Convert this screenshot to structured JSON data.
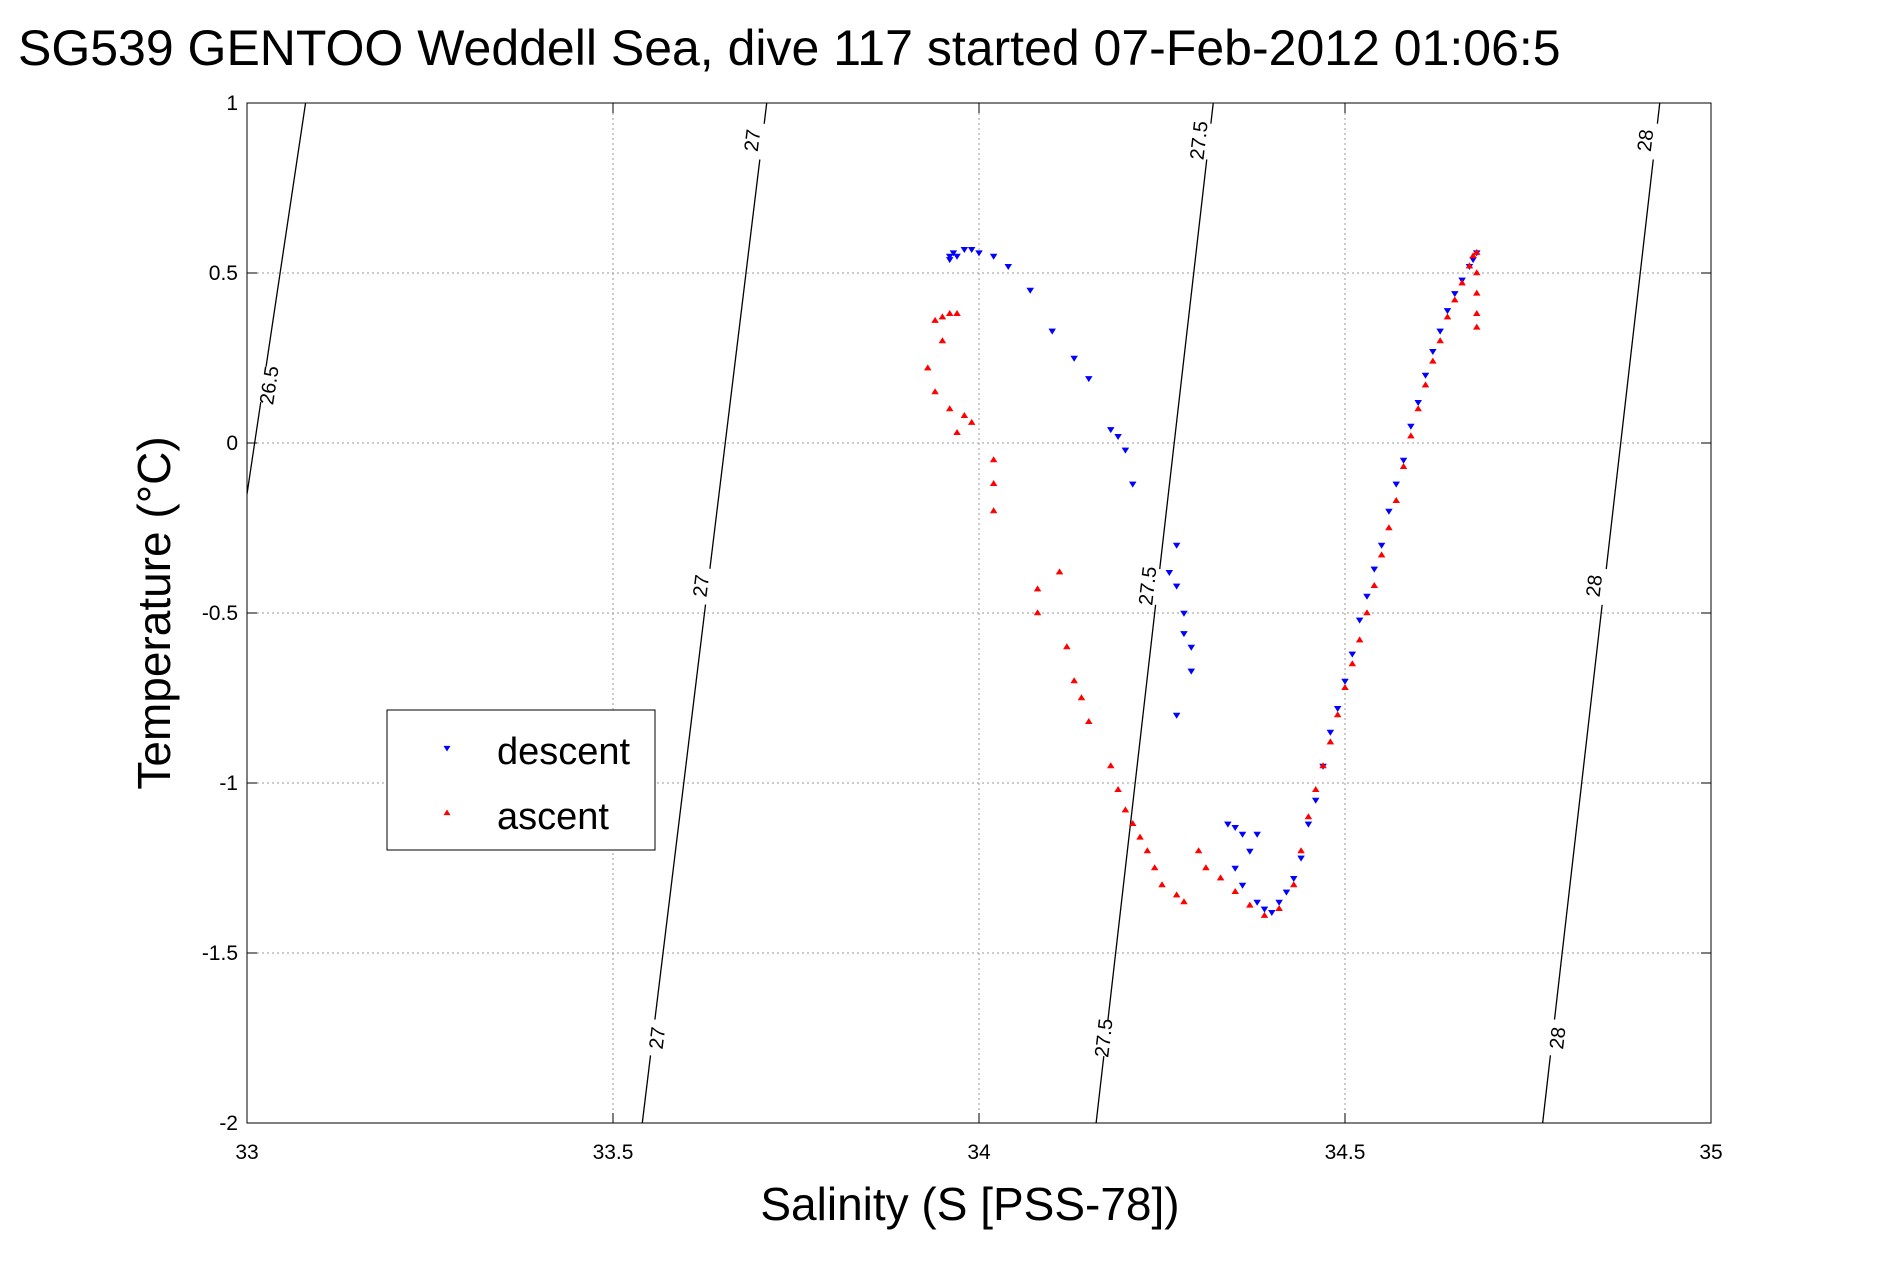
{
  "chart_data": {
    "type": "scatter",
    "title": "SG539 GENTOO Weddell Sea, dive 117 started 07-Feb-2012 01:06:5",
    "xlabel": "Salinity (S [PSS-78])",
    "ylabel": "Temperature (°C)",
    "xlim": [
      33,
      35
    ],
    "ylim": [
      -2,
      1
    ],
    "x_ticks": [
      33,
      33.5,
      34,
      34.5,
      35
    ],
    "x_tick_labels": [
      "33",
      "33.5",
      "34",
      "34.5",
      "35"
    ],
    "y_ticks": [
      -2,
      -1.5,
      -1,
      -0.5,
      0,
      0.5,
      1
    ],
    "y_tick_labels": [
      "-2",
      "-1.5",
      "-1",
      "-0.5",
      "0",
      "0.5",
      "1"
    ],
    "grid": true,
    "legend_position": "center-left",
    "density_contours": [
      {
        "label": "26.5",
        "points": [
          [
            33.0,
            -0.15
          ],
          [
            33.08,
            1.0
          ]
        ],
        "label_positions": [
          [
            33.03,
            0.17
          ]
        ]
      },
      {
        "label": "27",
        "points": [
          [
            33.54,
            -2.0
          ],
          [
            33.71,
            1.0
          ]
        ],
        "label_positions": [
          [
            33.56,
            -1.75
          ],
          [
            33.62,
            -0.42
          ],
          [
            33.69,
            0.89
          ]
        ]
      },
      {
        "label": "27.5",
        "points": [
          [
            34.16,
            -2.0
          ],
          [
            34.32,
            1.0
          ]
        ],
        "label_positions": [
          [
            34.17,
            -1.75
          ],
          [
            34.23,
            -0.42
          ],
          [
            34.3,
            0.89
          ]
        ]
      },
      {
        "label": "28",
        "points": [
          [
            34.77,
            -2.0
          ],
          [
            34.93,
            1.0
          ]
        ],
        "label_positions": [
          [
            34.79,
            -1.75
          ],
          [
            34.84,
            -0.42
          ],
          [
            34.91,
            0.89
          ]
        ]
      }
    ],
    "series": [
      {
        "name": "descent",
        "color": "#0000ff",
        "marker": "triangle-down",
        "points": [
          [
            33.96,
            0.54
          ],
          [
            33.96,
            0.55
          ],
          [
            33.965,
            0.56
          ],
          [
            33.97,
            0.55
          ],
          [
            33.98,
            0.57
          ],
          [
            33.99,
            0.57
          ],
          [
            34.0,
            0.56
          ],
          [
            34.02,
            0.55
          ],
          [
            34.04,
            0.52
          ],
          [
            34.07,
            0.45
          ],
          [
            34.1,
            0.33
          ],
          [
            34.13,
            0.25
          ],
          [
            34.15,
            0.19
          ],
          [
            34.18,
            0.04
          ],
          [
            34.19,
            0.02
          ],
          [
            34.2,
            -0.02
          ],
          [
            34.21,
            -0.12
          ],
          [
            34.26,
            -0.38
          ],
          [
            34.27,
            -0.3
          ],
          [
            34.27,
            -0.42
          ],
          [
            34.28,
            -0.5
          ],
          [
            34.28,
            -0.56
          ],
          [
            34.29,
            -0.6
          ],
          [
            34.29,
            -0.67
          ],
          [
            34.27,
            -0.8
          ],
          [
            34.34,
            -1.12
          ],
          [
            34.35,
            -1.13
          ],
          [
            34.36,
            -1.15
          ],
          [
            34.37,
            -1.2
          ],
          [
            34.38,
            -1.15
          ],
          [
            34.35,
            -1.25
          ],
          [
            34.36,
            -1.3
          ],
          [
            34.38,
            -1.35
          ],
          [
            34.39,
            -1.37
          ],
          [
            34.4,
            -1.38
          ],
          [
            34.41,
            -1.35
          ],
          [
            34.42,
            -1.32
          ],
          [
            34.43,
            -1.28
          ],
          [
            34.44,
            -1.22
          ],
          [
            34.45,
            -1.12
          ],
          [
            34.46,
            -1.05
          ],
          [
            34.47,
            -0.95
          ],
          [
            34.48,
            -0.85
          ],
          [
            34.49,
            -0.78
          ],
          [
            34.5,
            -0.7
          ],
          [
            34.51,
            -0.62
          ],
          [
            34.52,
            -0.52
          ],
          [
            34.53,
            -0.45
          ],
          [
            34.54,
            -0.37
          ],
          [
            34.55,
            -0.3
          ],
          [
            34.56,
            -0.2
          ],
          [
            34.57,
            -0.12
          ],
          [
            34.58,
            -0.05
          ],
          [
            34.59,
            0.05
          ],
          [
            34.6,
            0.12
          ],
          [
            34.61,
            0.2
          ],
          [
            34.62,
            0.27
          ],
          [
            34.63,
            0.33
          ],
          [
            34.64,
            0.39
          ],
          [
            34.65,
            0.44
          ],
          [
            34.66,
            0.48
          ],
          [
            34.67,
            0.52
          ],
          [
            34.675,
            0.54
          ],
          [
            34.68,
            0.56
          ]
        ]
      },
      {
        "name": "ascent",
        "color": "#ff0000",
        "marker": "triangle-up",
        "points": [
          [
            33.94,
            0.36
          ],
          [
            33.95,
            0.37
          ],
          [
            33.96,
            0.38
          ],
          [
            33.97,
            0.38
          ],
          [
            33.95,
            0.3
          ],
          [
            33.93,
            0.22
          ],
          [
            33.94,
            0.15
          ],
          [
            33.96,
            0.1
          ],
          [
            33.97,
            0.03
          ],
          [
            33.98,
            0.08
          ],
          [
            33.99,
            0.06
          ],
          [
            34.02,
            -0.05
          ],
          [
            34.02,
            -0.12
          ],
          [
            34.02,
            -0.2
          ],
          [
            34.08,
            -0.43
          ],
          [
            34.08,
            -0.5
          ],
          [
            34.11,
            -0.38
          ],
          [
            34.12,
            -0.6
          ],
          [
            34.13,
            -0.7
          ],
          [
            34.14,
            -0.75
          ],
          [
            34.15,
            -0.82
          ],
          [
            34.18,
            -0.95
          ],
          [
            34.19,
            -1.02
          ],
          [
            34.2,
            -1.08
          ],
          [
            34.21,
            -1.12
          ],
          [
            34.22,
            -1.16
          ],
          [
            34.23,
            -1.2
          ],
          [
            34.24,
            -1.25
          ],
          [
            34.25,
            -1.3
          ],
          [
            34.27,
            -1.33
          ],
          [
            34.28,
            -1.35
          ],
          [
            34.3,
            -1.2
          ],
          [
            34.31,
            -1.25
          ],
          [
            34.33,
            -1.28
          ],
          [
            34.35,
            -1.32
          ],
          [
            34.37,
            -1.36
          ],
          [
            34.39,
            -1.39
          ],
          [
            34.41,
            -1.37
          ],
          [
            34.43,
            -1.3
          ],
          [
            34.44,
            -1.2
          ],
          [
            34.45,
            -1.1
          ],
          [
            34.46,
            -1.02
          ],
          [
            34.47,
            -0.95
          ],
          [
            34.48,
            -0.88
          ],
          [
            34.49,
            -0.8
          ],
          [
            34.5,
            -0.72
          ],
          [
            34.51,
            -0.65
          ],
          [
            34.52,
            -0.58
          ],
          [
            34.53,
            -0.5
          ],
          [
            34.54,
            -0.42
          ],
          [
            34.55,
            -0.33
          ],
          [
            34.56,
            -0.25
          ],
          [
            34.57,
            -0.17
          ],
          [
            34.58,
            -0.07
          ],
          [
            34.59,
            0.02
          ],
          [
            34.6,
            0.1
          ],
          [
            34.61,
            0.17
          ],
          [
            34.62,
            0.24
          ],
          [
            34.63,
            0.3
          ],
          [
            34.64,
            0.37
          ],
          [
            34.65,
            0.42
          ],
          [
            34.66,
            0.47
          ],
          [
            34.67,
            0.52
          ],
          [
            34.675,
            0.55
          ],
          [
            34.68,
            0.56
          ],
          [
            34.68,
            0.5
          ],
          [
            34.68,
            0.44
          ],
          [
            34.68,
            0.38
          ],
          [
            34.68,
            0.34
          ]
        ]
      }
    ]
  }
}
